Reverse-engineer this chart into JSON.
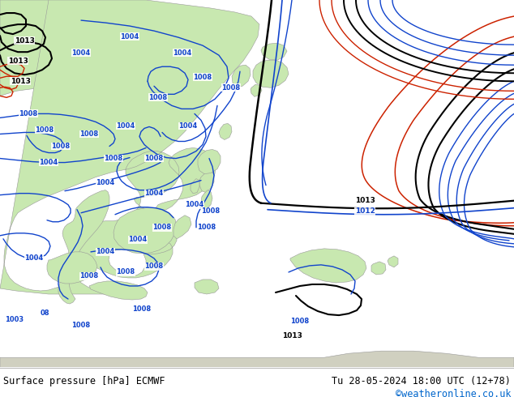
{
  "title_left": "Surface pressure [hPa] ECMWF",
  "title_right": "Tu 28-05-2024 18:00 UTC (12+78)",
  "copyright": "©weatheronline.co.uk",
  "ocean_color": "#d8d8d8",
  "land_color": "#c8e8b0",
  "land_edge": "#999999",
  "copyright_color": "#0066cc",
  "blue": "#1144cc",
  "black": "#000000",
  "red": "#cc2200",
  "figsize": [
    6.34,
    4.9
  ],
  "dpi": 100
}
